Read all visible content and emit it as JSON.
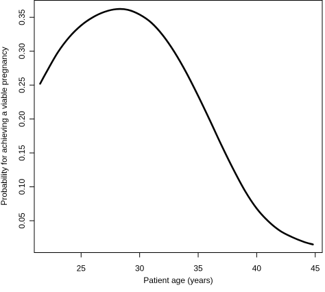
{
  "chart_data": {
    "type": "line",
    "title": "",
    "xlabel": "Patient age (years)",
    "ylabel": "Probability for achieving a viable pregnancy",
    "xlim": [
      21,
      45.6
    ],
    "ylim": [
      0.003,
      0.375
    ],
    "xticks": [
      25,
      30,
      35,
      40,
      45
    ],
    "yticks": [
      0.05,
      0.1,
      0.15,
      0.2,
      0.25,
      0.3,
      0.35
    ],
    "ytick_labels": [
      "0.05",
      "0.10",
      "0.15",
      "0.20",
      "0.25",
      "0.30",
      "0.35"
    ],
    "grid": false,
    "series": [
      {
        "x": [
          21.5,
          22.0,
          23.0,
          24.0,
          25.0,
          26.0,
          27.0,
          28.0,
          29.0,
          30.0,
          31.0,
          32.0,
          33.0,
          34.0,
          35.0,
          36.0,
          37.0,
          38.0,
          39.0,
          40.0,
          41.0,
          42.0,
          43.0,
          44.0,
          44.8
        ],
        "y": [
          0.252,
          0.268,
          0.298,
          0.321,
          0.338,
          0.35,
          0.358,
          0.362,
          0.361,
          0.354,
          0.342,
          0.323,
          0.298,
          0.268,
          0.234,
          0.198,
          0.161,
          0.126,
          0.094,
          0.068,
          0.049,
          0.035,
          0.026,
          0.019,
          0.015
        ]
      }
    ]
  }
}
